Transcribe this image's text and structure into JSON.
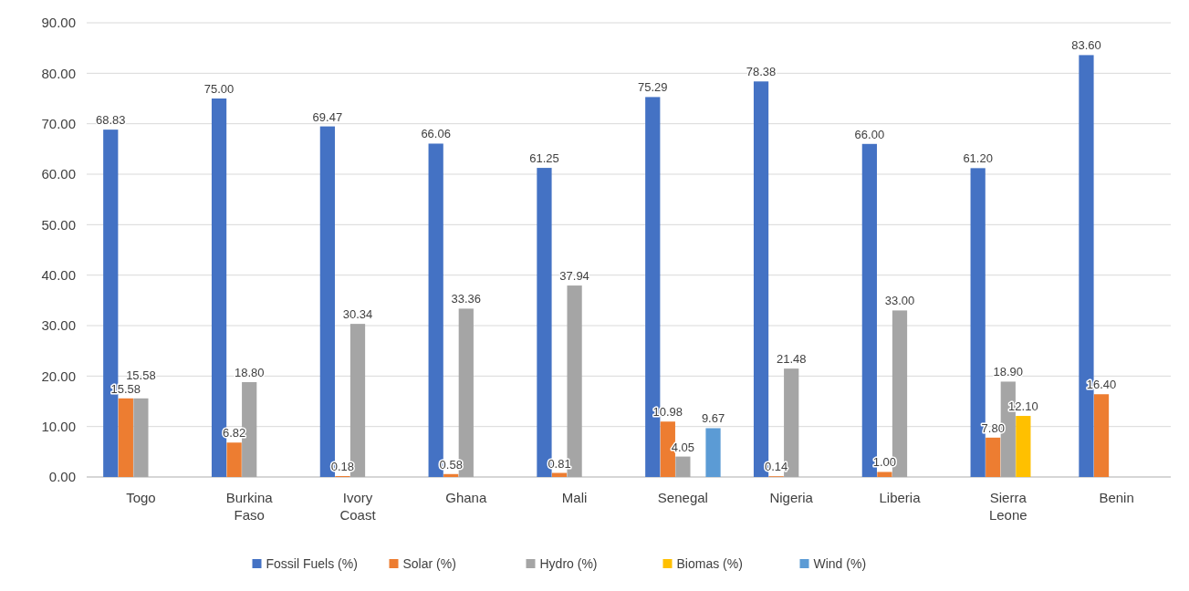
{
  "chart_data": {
    "type": "bar",
    "categories": [
      "Togo",
      "Burkina Faso",
      "Ivory Coast",
      "Ghana",
      "Mali",
      "Senegal",
      "Nigeria",
      "Liberia",
      "Sierra Leone",
      "Benin"
    ],
    "series": [
      {
        "name": "Fossil Fuels (%)",
        "color": "#4472c4",
        "values": [
          68.83,
          75,
          69.47,
          66.06,
          61.25,
          75.29,
          78.38,
          66,
          61.2,
          83.6
        ],
        "value_labels": [
          "68.83",
          "75.00",
          "69.47",
          "66.06",
          "61.25",
          "75.29",
          "78.38",
          "66.00",
          "61.20",
          "83.60"
        ]
      },
      {
        "name": "Solar (%)",
        "color": "#ed7d31",
        "values": [
          15.58,
          6.82,
          0.18,
          0.58,
          0.81,
          10.98,
          0.14,
          1,
          7.8,
          16.4
        ],
        "value_labels": [
          "15.58",
          "6.82",
          "0.18",
          "0.58",
          "0.81",
          "10.98",
          "0.14",
          "1.00",
          "7.80",
          "16.40"
        ]
      },
      {
        "name": "Hydro (%)",
        "color": "#a5a5a5",
        "values": [
          15.58,
          18.8,
          30.34,
          33.36,
          37.94,
          4.05,
          21.48,
          33,
          18.9,
          null
        ],
        "value_labels": [
          "15.58",
          "18.80",
          "30.34",
          "33.36",
          "37.94",
          "4.05",
          "21.48",
          "33.00",
          "18.90",
          null
        ]
      },
      {
        "name": "Biomas (%)",
        "color": "#ffc000",
        "values": [
          null,
          null,
          null,
          null,
          null,
          null,
          null,
          null,
          12.1,
          null
        ],
        "value_labels": [
          null,
          null,
          null,
          null,
          null,
          null,
          null,
          null,
          "12.10",
          null
        ]
      },
      {
        "name": "Wind (%)",
        "color": "#5b9bd5",
        "values": [
          null,
          null,
          null,
          null,
          null,
          9.67,
          null,
          null,
          null,
          null
        ],
        "value_labels": [
          null,
          null,
          null,
          null,
          null,
          "9.67",
          null,
          null,
          null,
          null
        ]
      }
    ],
    "ylim": [
      0,
      90
    ],
    "yticks": [
      {
        "value": 0,
        "label": "0.00"
      },
      {
        "value": 10,
        "label": "10.00"
      },
      {
        "value": 20,
        "label": "20.00"
      },
      {
        "value": 30,
        "label": "30.00"
      },
      {
        "value": 40,
        "label": "40.00"
      },
      {
        "value": 50,
        "label": "50.00"
      },
      {
        "value": 60,
        "label": "60.00"
      },
      {
        "value": 70,
        "label": "70.00"
      },
      {
        "value": 80,
        "label": "80.00"
      },
      {
        "value": 90,
        "label": "90.00"
      }
    ],
    "grid": true,
    "legend": "bottom"
  }
}
